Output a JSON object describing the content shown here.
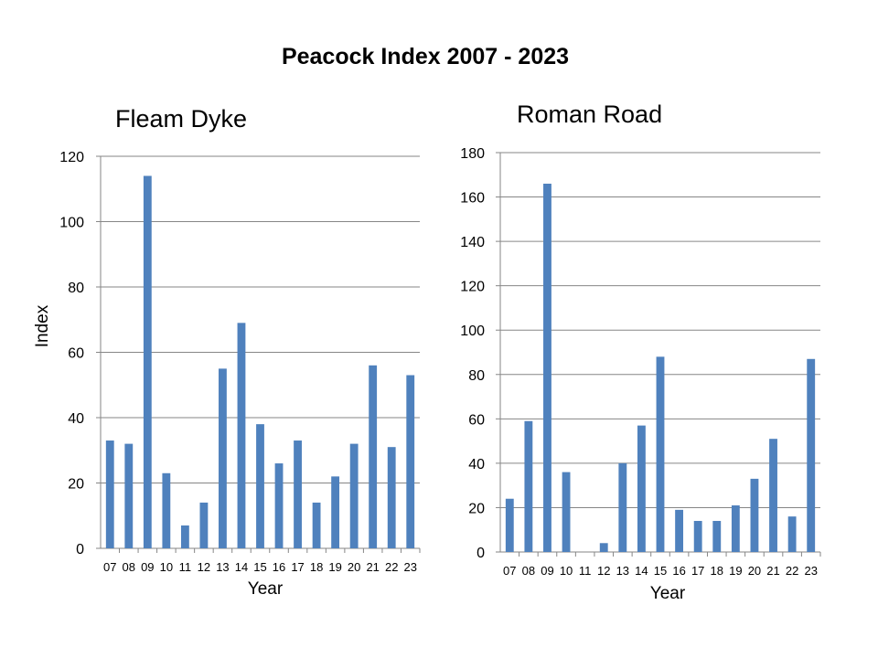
{
  "page_title": "Peacock Index 2007 - 2023",
  "colors": {
    "bar": "#4f81bd"
  },
  "chart_data": [
    {
      "type": "bar",
      "title": "Fleam Dyke",
      "xlabel": "Year",
      "ylabel": "Index",
      "categories": [
        "07",
        "08",
        "09",
        "10",
        "11",
        "12",
        "13",
        "14",
        "15",
        "16",
        "17",
        "18",
        "19",
        "20",
        "21",
        "22",
        "23"
      ],
      "series": [
        {
          "values": [
            33,
            32,
            114,
            23,
            7,
            14,
            55,
            69,
            38,
            26,
            33,
            14,
            22,
            32,
            56,
            31,
            53
          ]
        }
      ],
      "ylim": [
        0,
        120
      ],
      "yticks": [
        0,
        20,
        40,
        60,
        80,
        100,
        120
      ],
      "grid": true,
      "legend": "none"
    },
    {
      "type": "bar",
      "title": "Roman Road",
      "xlabel": "Year",
      "ylabel": "",
      "categories": [
        "07",
        "08",
        "09",
        "10",
        "11",
        "12",
        "13",
        "14",
        "15",
        "16",
        "17",
        "18",
        "19",
        "20",
        "21",
        "22",
        "23"
      ],
      "series": [
        {
          "values": [
            24,
            59,
            166,
            36,
            0,
            4,
            40,
            57,
            88,
            19,
            14,
            14,
            21,
            33,
            51,
            16,
            87
          ]
        }
      ],
      "ylim": [
        0,
        180
      ],
      "yticks": [
        0,
        20,
        40,
        60,
        80,
        100,
        120,
        140,
        160,
        180
      ],
      "grid": true,
      "legend": "none"
    }
  ]
}
